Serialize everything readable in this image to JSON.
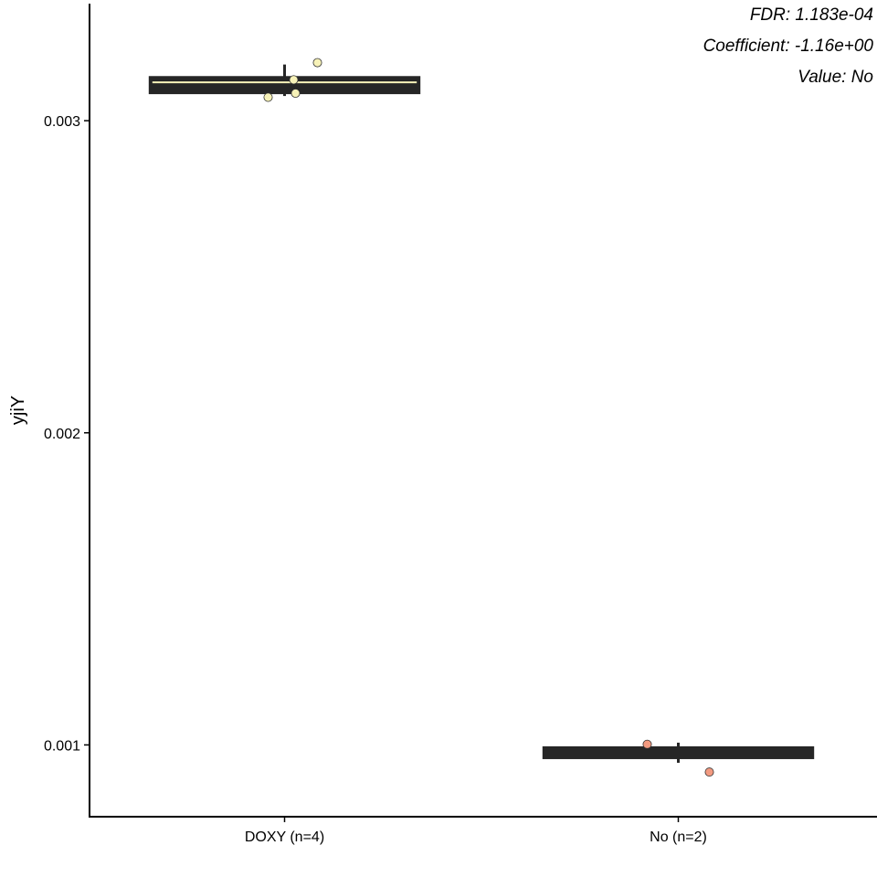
{
  "chart_data": {
    "type": "box",
    "ylabel": "yjiY",
    "xlabel": "",
    "ylim": [
      0.00077,
      0.003375
    ],
    "y_ticks": [
      0.001,
      0.002,
      0.003
    ],
    "y_tick_labels": [
      "0.001",
      "0.002",
      "0.003"
    ],
    "categories": [
      "DOXY (n=4)",
      "No (n=2)"
    ],
    "groups": [
      {
        "name": "DOXY (n=4)",
        "color": "#f7f2b8",
        "box": {
          "q1": 0.003085,
          "median": 0.00313,
          "q3": 0.003143
        },
        "whisker_low": 0.003085,
        "whisker_high": 0.00318,
        "points": [
          0.003075,
          0.003088,
          0.003131,
          0.003186
        ]
      },
      {
        "name": "No (n=2)",
        "color": "#f29a80",
        "box": {
          "q1": 0.00096,
          "median": 0.000975,
          "q3": 0.00099
        },
        "whisker_low": 0.00096,
        "whisker_high": 0.00099,
        "points": [
          0.000913,
          0.001002
        ]
      }
    ],
    "annotations": [
      "FDR: 1.183e-04",
      "Coefficient: -1.16e+00",
      "Value: No"
    ],
    "colors": {
      "box_fill": "#262626",
      "median_line": "#f7f2b8",
      "axis": "#000000"
    }
  }
}
